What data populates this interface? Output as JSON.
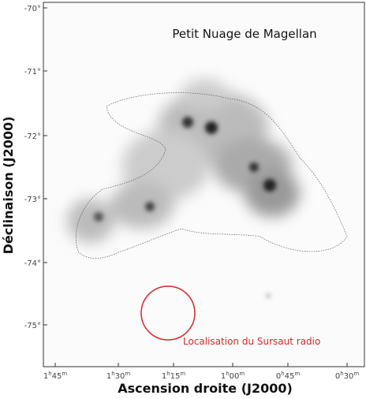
{
  "figure": {
    "title": "Petit Nuage de Magellan",
    "xlabel": "Ascension droite (J2000)",
    "ylabel": "Déclinaison (J2000)",
    "annotation": "Localisation du Sursaut radio",
    "yticks": [
      "-70°",
      "-71°",
      "-72°",
      "-73°",
      "-74°",
      "-75°"
    ],
    "xticks": [
      [
        "1",
        "h",
        "45",
        "m"
      ],
      [
        "1",
        "h",
        "30",
        "m"
      ],
      [
        "1",
        "h",
        "15",
        "m"
      ],
      [
        "1",
        "h",
        "00",
        "m"
      ],
      [
        "0",
        "h",
        "45",
        "m"
      ],
      [
        "0",
        "h",
        "30",
        "m"
      ]
    ]
  }
}
